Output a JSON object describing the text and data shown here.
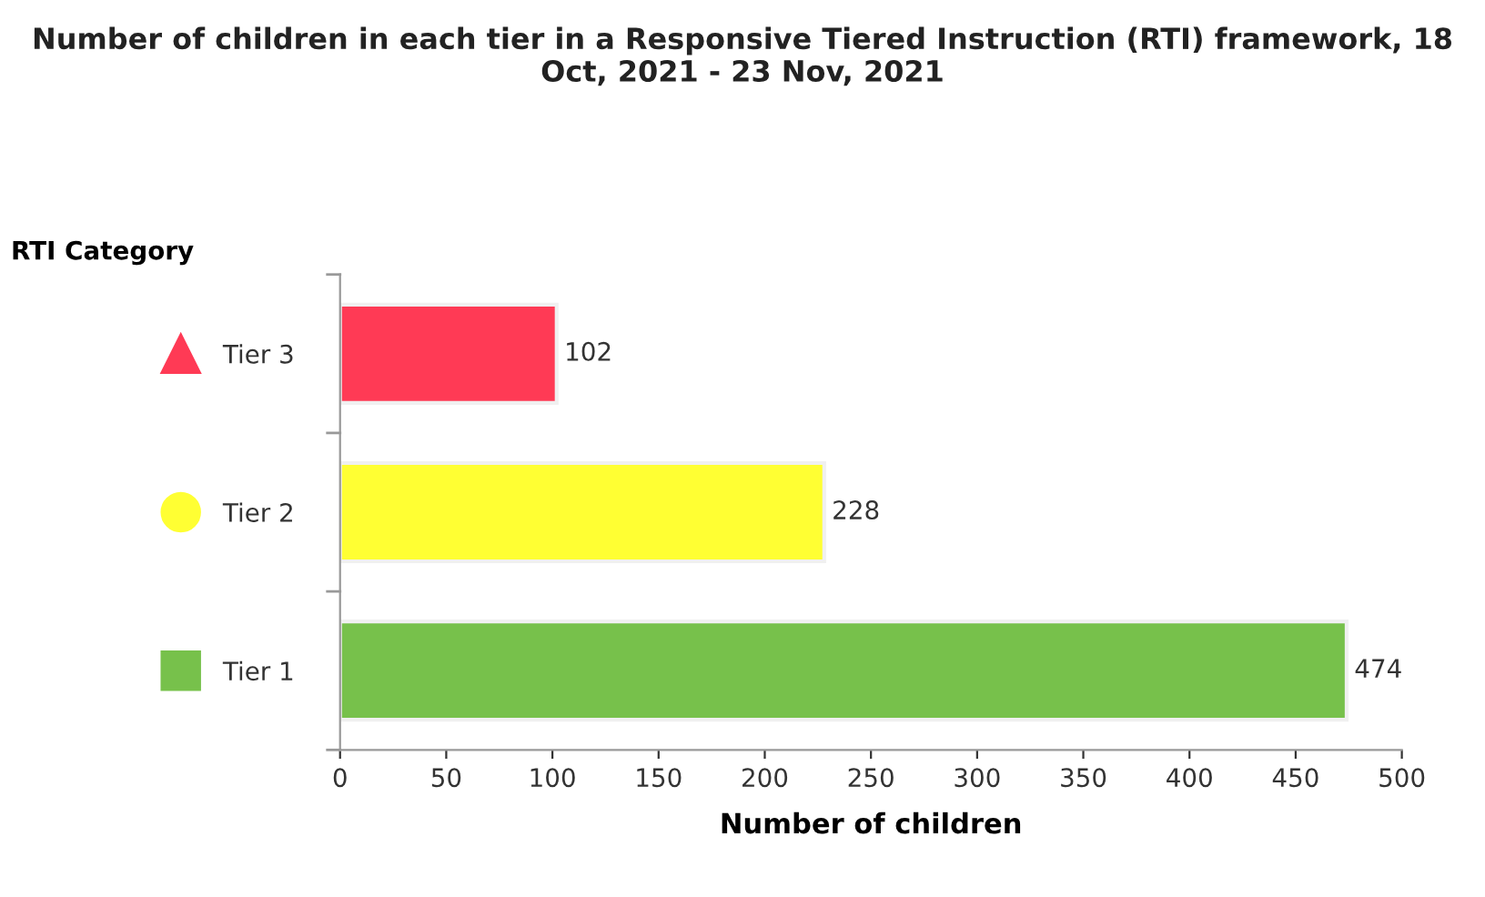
{
  "chart_data": {
    "type": "bar",
    "orientation": "horizontal",
    "title": "Number of children in each tier in a Responsive Tiered Instruction (RTI) framework, 18 Oct, 2021 - 23 Nov, 2021",
    "xlabel": "Number of children",
    "ylabel": "RTI Category",
    "categories": [
      "Tier 3",
      "Tier 2",
      "Tier 1"
    ],
    "values": [
      102,
      228,
      474
    ],
    "colors": [
      "#ff3a55",
      "#ffff33",
      "#77c14b"
    ],
    "xlim": [
      0,
      500
    ],
    "xticks": [
      0,
      50,
      100,
      150,
      200,
      250,
      300,
      350,
      400,
      450,
      500
    ],
    "data_labels": true,
    "grid": false,
    "legend": false
  }
}
